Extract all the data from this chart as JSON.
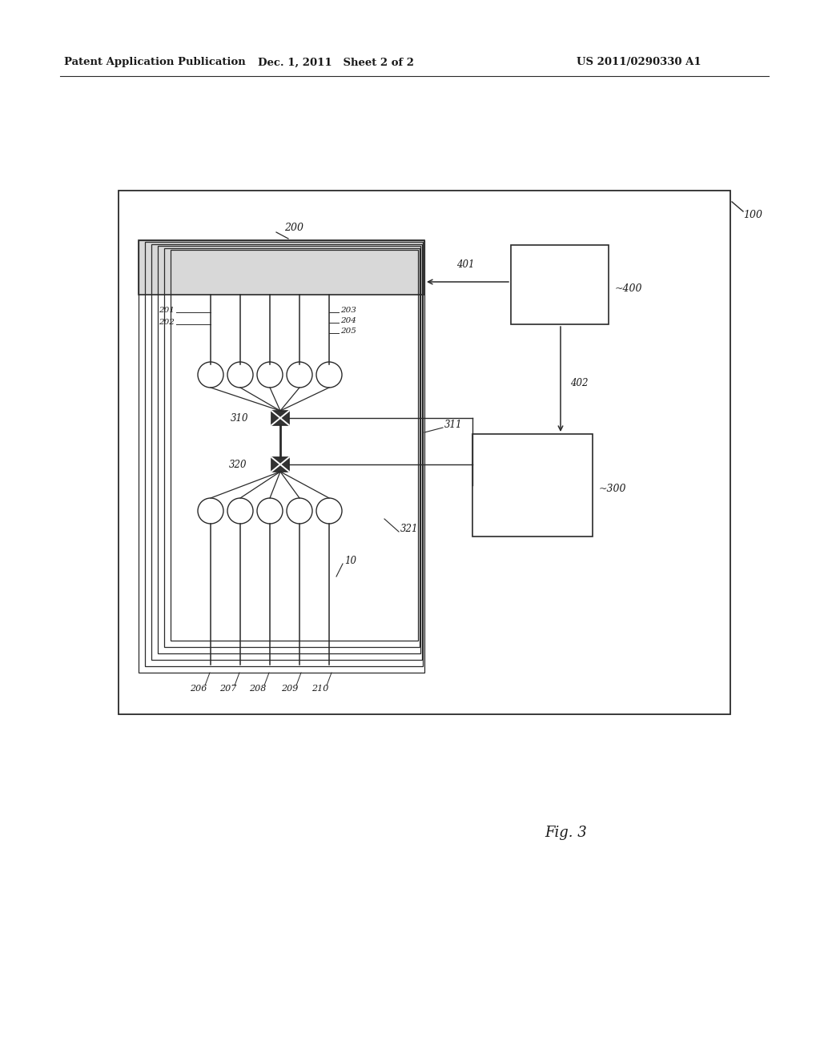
{
  "bg_color": "#ffffff",
  "header_text_left": "Patent Application Publication",
  "header_text_mid": "Dec. 1, 2011   Sheet 2 of 2",
  "header_text_right": "US 2011/0290330 A1",
  "fig_label": "Fig. 3",
  "line_color": "#2a2a2a",
  "text_color": "#1a1a1a"
}
